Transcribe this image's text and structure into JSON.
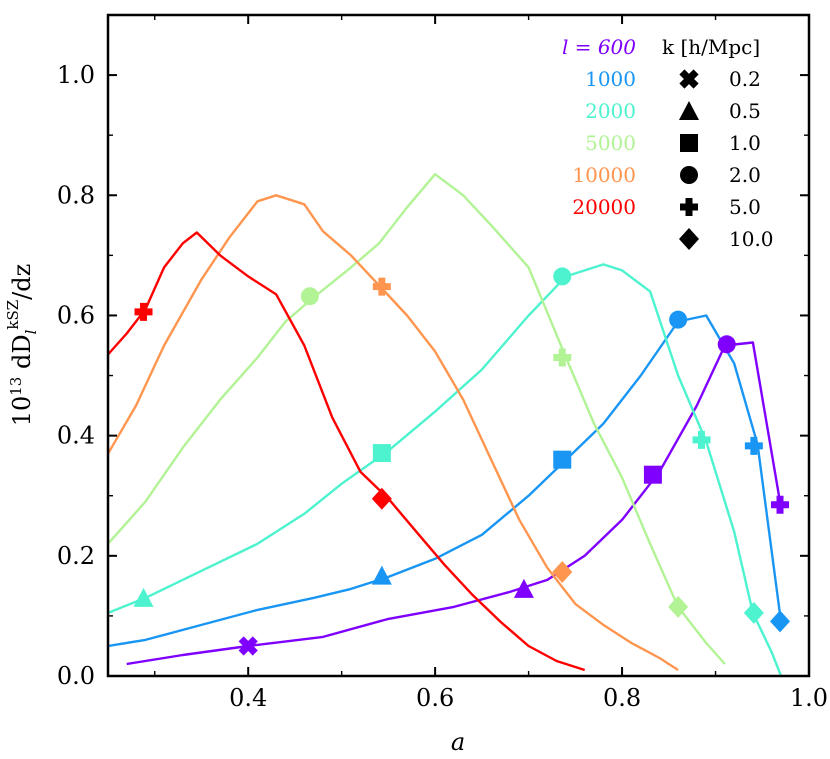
{
  "chart_data": {
    "type": "line",
    "title": "",
    "xlabel": "a",
    "ylabel_prefix": "10",
    "ylabel_exp": "13",
    "ylabel_main": " dD",
    "ylabel_sub": "l",
    "ylabel_sup": "kSZ",
    "ylabel_tail": "/dz",
    "xlim": [
      0.25,
      1.0
    ],
    "ylim": [
      0.0,
      1.1
    ],
    "xticks": [
      0.4,
      0.6,
      0.8,
      1.0
    ],
    "xtick_labels": [
      "0.4",
      "0.6",
      "0.8",
      "1.0"
    ],
    "yticks": [
      0.0,
      0.2,
      0.4,
      0.6,
      0.8,
      1.0
    ],
    "ytick_labels": [
      "0.0",
      "0.2",
      "0.4",
      "0.6",
      "0.8",
      "1.0"
    ],
    "legend_l_title": "l = 600",
    "legend_k_title": "k [h/Mpc]",
    "k_values": [
      "0.2",
      "0.5",
      "1.0",
      "2.0",
      "5.0",
      "10.0"
    ],
    "k_markers": [
      "x",
      "triangle",
      "square",
      "circle",
      "plus",
      "diamond"
    ],
    "series": [
      {
        "name": "600",
        "legend_label": "l = 600",
        "color": "#8000ff",
        "x": [
          0.27,
          0.33,
          0.4,
          0.48,
          0.55,
          0.62,
          0.68,
          0.72,
          0.76,
          0.8,
          0.84,
          0.88,
          0.91,
          0.94,
          0.97
        ],
        "y": [
          0.02,
          0.035,
          0.05,
          0.065,
          0.095,
          0.115,
          0.14,
          0.16,
          0.2,
          0.26,
          0.34,
          0.45,
          0.55,
          0.555,
          0.28
        ],
        "markers": [
          {
            "k": "0.2",
            "x": 0.4,
            "y": 0.05
          },
          {
            "k": "0.5",
            "x": 0.695,
            "y": 0.145
          },
          {
            "k": "1.0",
            "x": 0.833,
            "y": 0.335
          },
          {
            "k": "2.0",
            "x": 0.912,
            "y": 0.552
          },
          {
            "k": "5.0",
            "x": 0.969,
            "y": 0.285
          }
        ]
      },
      {
        "name": "1000",
        "legend_label": "1000",
        "color": "#1996f3",
        "x": [
          0.25,
          0.29,
          0.35,
          0.41,
          0.47,
          0.51,
          0.55,
          0.6,
          0.65,
          0.7,
          0.74,
          0.78,
          0.82,
          0.86,
          0.89,
          0.92,
          0.945,
          0.97
        ],
        "y": [
          0.05,
          0.06,
          0.085,
          0.11,
          0.13,
          0.145,
          0.165,
          0.195,
          0.235,
          0.3,
          0.36,
          0.42,
          0.5,
          0.59,
          0.6,
          0.52,
          0.385,
          0.09
        ],
        "markers": [
          {
            "k": "0.5",
            "x": 0.543,
            "y": 0.167
          },
          {
            "k": "1.0",
            "x": 0.736,
            "y": 0.36
          },
          {
            "k": "2.0",
            "x": 0.86,
            "y": 0.593
          },
          {
            "k": "5.0",
            "x": 0.941,
            "y": 0.383
          },
          {
            "k": "10.0",
            "x": 0.969,
            "y": 0.091
          }
        ]
      },
      {
        "name": "2000",
        "legend_label": "2000",
        "color": "#4df3ce",
        "x": [
          0.25,
          0.29,
          0.35,
          0.41,
          0.46,
          0.5,
          0.55,
          0.6,
          0.65,
          0.7,
          0.74,
          0.78,
          0.8,
          0.83,
          0.86,
          0.89,
          0.92,
          0.94,
          0.96,
          0.97
        ],
        "y": [
          0.105,
          0.13,
          0.175,
          0.22,
          0.27,
          0.32,
          0.375,
          0.44,
          0.51,
          0.6,
          0.665,
          0.685,
          0.675,
          0.64,
          0.5,
          0.39,
          0.24,
          0.105,
          0.04,
          0.0
        ],
        "markers": [
          {
            "k": "0.5",
            "x": 0.288,
            "y": 0.13
          },
          {
            "k": "1.0",
            "x": 0.543,
            "y": 0.371
          },
          {
            "k": "2.0",
            "x": 0.736,
            "y": 0.665
          },
          {
            "k": "5.0",
            "x": 0.885,
            "y": 0.393
          },
          {
            "k": "10.0",
            "x": 0.941,
            "y": 0.105
          }
        ]
      },
      {
        "name": "5000",
        "legend_label": "5000",
        "color": "#b2f396",
        "x": [
          0.25,
          0.29,
          0.33,
          0.37,
          0.41,
          0.44,
          0.47,
          0.51,
          0.54,
          0.57,
          0.6,
          0.63,
          0.66,
          0.7,
          0.74,
          0.77,
          0.8,
          0.83,
          0.86,
          0.89,
          0.91
        ],
        "y": [
          0.22,
          0.29,
          0.38,
          0.46,
          0.53,
          0.59,
          0.63,
          0.68,
          0.72,
          0.78,
          0.835,
          0.8,
          0.75,
          0.68,
          0.53,
          0.42,
          0.33,
          0.22,
          0.115,
          0.055,
          0.02
        ],
        "markers": [
          {
            "k": "2.0",
            "x": 0.466,
            "y": 0.632
          },
          {
            "k": "5.0",
            "x": 0.736,
            "y": 0.53
          },
          {
            "k": "10.0",
            "x": 0.86,
            "y": 0.115
          }
        ]
      },
      {
        "name": "10000",
        "legend_label": "10000",
        "color": "#ff964f",
        "x": [
          0.25,
          0.28,
          0.31,
          0.35,
          0.38,
          0.41,
          0.43,
          0.46,
          0.48,
          0.51,
          0.54,
          0.57,
          0.6,
          0.63,
          0.66,
          0.69,
          0.72,
          0.75,
          0.78,
          0.81,
          0.84,
          0.86
        ],
        "y": [
          0.37,
          0.45,
          0.55,
          0.66,
          0.73,
          0.79,
          0.8,
          0.785,
          0.74,
          0.7,
          0.65,
          0.6,
          0.54,
          0.46,
          0.36,
          0.26,
          0.18,
          0.12,
          0.085,
          0.055,
          0.03,
          0.01
        ],
        "markers": [
          {
            "k": "5.0",
            "x": 0.543,
            "y": 0.648
          },
          {
            "k": "10.0",
            "x": 0.736,
            "y": 0.173
          }
        ]
      },
      {
        "name": "20000",
        "legend_label": "20000",
        "color": "#ff0000",
        "x": [
          0.25,
          0.27,
          0.29,
          0.31,
          0.33,
          0.345,
          0.37,
          0.4,
          0.43,
          0.46,
          0.49,
          0.52,
          0.55,
          0.58,
          0.61,
          0.64,
          0.67,
          0.7,
          0.73,
          0.76
        ],
        "y": [
          0.535,
          0.57,
          0.61,
          0.68,
          0.72,
          0.738,
          0.7,
          0.665,
          0.635,
          0.55,
          0.43,
          0.34,
          0.295,
          0.24,
          0.185,
          0.135,
          0.09,
          0.05,
          0.025,
          0.01
        ],
        "markers": [
          {
            "k": "5.0",
            "x": 0.288,
            "y": 0.606
          },
          {
            "k": "10.0",
            "x": 0.543,
            "y": 0.295
          }
        ]
      }
    ]
  }
}
